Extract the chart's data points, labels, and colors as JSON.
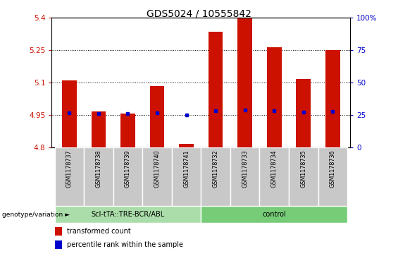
{
  "title": "GDS5024 / 10555842",
  "samples": [
    "GSM1178737",
    "GSM1178738",
    "GSM1178739",
    "GSM1178740",
    "GSM1178741",
    "GSM1178732",
    "GSM1178733",
    "GSM1178734",
    "GSM1178735",
    "GSM1178736"
  ],
  "bar_bottoms": [
    4.8,
    4.8,
    4.8,
    4.8,
    4.8,
    4.8,
    4.8,
    4.8,
    4.8,
    4.8
  ],
  "bar_tops": [
    5.11,
    4.965,
    4.955,
    5.085,
    4.815,
    5.335,
    5.4,
    5.265,
    5.115,
    5.25
  ],
  "blue_y": [
    4.958,
    4.955,
    4.955,
    4.96,
    4.951,
    4.968,
    4.972,
    4.97,
    4.963,
    4.965
  ],
  "ylim_left": [
    4.8,
    5.4
  ],
  "ylim_right": [
    0,
    100
  ],
  "yticks_left": [
    4.8,
    4.95,
    5.1,
    5.25,
    5.4
  ],
  "yticks_right": [
    0,
    25,
    50,
    75,
    100
  ],
  "ytick_labels_left": [
    "4.8",
    "4.95",
    "5.1",
    "5.25",
    "5.4"
  ],
  "ytick_labels_right": [
    "0",
    "25",
    "50",
    "75",
    "100%"
  ],
  "bar_color": "#cc1100",
  "blue_color": "#0000cc",
  "group1_color": "#aaddaa",
  "group2_color": "#77cc77",
  "group_label": "genotype/variation",
  "group1_name": "ScI-tTA::TRE-BCR/ABL",
  "group2_name": "control",
  "legend_tc": "transformed count",
  "legend_pr": "percentile rank within the sample",
  "bar_width": 0.5,
  "label_area_color": "#c8c8c8",
  "n_group1": 5,
  "n_group2": 5
}
